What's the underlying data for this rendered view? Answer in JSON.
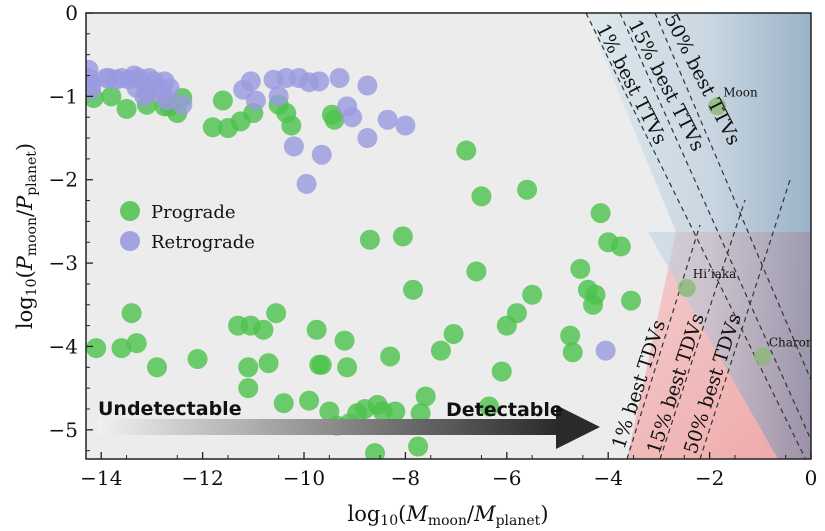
{
  "chart_data": {
    "type": "scatter",
    "xlabel": "log10(Mmoon/Mplanet)",
    "ylabel": "log10(Pmoon/Pplanet)",
    "xlim": [
      -14.3,
      0
    ],
    "ylim": [
      -5.35,
      0
    ],
    "xticks": [
      "−14",
      "−12",
      "−10",
      "−8",
      "−6",
      "−4",
      "−2",
      "0"
    ],
    "xtick_values": [
      -14,
      -12,
      -10,
      -8,
      -6,
      -4,
      -2,
      0
    ],
    "yticks": [
      "0",
      "−1",
      "−2",
      "−3",
      "−4",
      "−5"
    ],
    "ytick_values": [
      0,
      -1,
      -2,
      -3,
      -4,
      -5
    ],
    "grid": false,
    "legend": {
      "position": "middle-left",
      "entries": [
        "Prograde",
        "Retrograde"
      ]
    },
    "colors": {
      "prograde": "#4bc24b",
      "retrograde": "#9a9ae0",
      "background": "#ececec",
      "ttv_zone": "#aed4e6",
      "tdv_zone": "#f0a8a8"
    },
    "zones": {
      "ttv_labels": [
        "1% best TTVs",
        "15% best TTVs",
        "50% best TTVs"
      ],
      "tdv_labels": [
        "1% best TDVs",
        "15% best TDVs",
        "50% best TDVs"
      ]
    },
    "arrow": {
      "left_label": "Undetectable",
      "right_label": "Detectable"
    },
    "named_points": [
      {
        "label": "Moon",
        "x": -1.85,
        "y": -1.12
      },
      {
        "label": "Hi’iaka",
        "x": -2.45,
        "y": -3.3
      },
      {
        "label": "Charon",
        "x": -0.95,
        "y": -4.12
      }
    ],
    "series": [
      {
        "name": "Prograde",
        "points": [
          [
            -14.1,
            -4.02
          ],
          [
            -13.6,
            -4.02
          ],
          [
            -13.4,
            -3.6
          ],
          [
            -13.3,
            -3.96
          ],
          [
            -12.9,
            -4.25
          ],
          [
            -12.5,
            -1.2
          ],
          [
            -12.4,
            -1.02
          ],
          [
            -12.1,
            -4.15
          ],
          [
            -11.8,
            -1.37
          ],
          [
            -11.6,
            -1.05
          ],
          [
            -11.5,
            -1.38
          ],
          [
            -11.3,
            -3.75
          ],
          [
            -11.25,
            -1.3
          ],
          [
            -11.1,
            -4.25
          ],
          [
            -11.1,
            -4.5
          ],
          [
            -11.05,
            -3.75
          ],
          [
            -11.0,
            -1.2
          ],
          [
            -10.8,
            -3.8
          ],
          [
            -10.7,
            -4.2
          ],
          [
            -10.55,
            -3.6
          ],
          [
            -10.5,
            -1.1
          ],
          [
            -10.4,
            -4.68
          ],
          [
            -10.35,
            -1.2
          ],
          [
            -10.25,
            -1.35
          ],
          [
            -9.9,
            -4.65
          ],
          [
            -9.75,
            -3.8
          ],
          [
            -9.7,
            -4.22
          ],
          [
            -9.65,
            -4.22
          ],
          [
            -9.5,
            -4.78
          ],
          [
            -9.45,
            -1.22
          ],
          [
            -9.4,
            -1.28
          ],
          [
            -9.35,
            -4.95
          ],
          [
            -9.2,
            -3.93
          ],
          [
            -9.15,
            -4.25
          ],
          [
            -9.1,
            -4.92
          ],
          [
            -8.95,
            -4.8
          ],
          [
            -8.8,
            -4.75
          ],
          [
            -8.7,
            -2.72
          ],
          [
            -8.6,
            -5.28
          ],
          [
            -8.55,
            -4.7
          ],
          [
            -8.45,
            -4.78
          ],
          [
            -8.3,
            -4.12
          ],
          [
            -8.2,
            -4.78
          ],
          [
            -8.05,
            -2.68
          ],
          [
            -7.85,
            -3.32
          ],
          [
            -7.75,
            -5.2
          ],
          [
            -7.7,
            -4.8
          ],
          [
            -7.6,
            -4.6
          ],
          [
            -7.3,
            -4.05
          ],
          [
            -7.05,
            -3.85
          ],
          [
            -6.8,
            -1.65
          ],
          [
            -6.6,
            -3.1
          ],
          [
            -6.5,
            -2.2
          ],
          [
            -6.35,
            -4.72
          ],
          [
            -6.1,
            -4.3
          ],
          [
            -6.0,
            -3.75
          ],
          [
            -5.8,
            -3.6
          ],
          [
            -5.6,
            -2.12
          ],
          [
            -5.5,
            -3.38
          ],
          [
            -4.75,
            -3.87
          ],
          [
            -4.7,
            -4.07
          ],
          [
            -4.55,
            -3.07
          ],
          [
            -4.4,
            -3.32
          ],
          [
            -4.3,
            -3.5
          ],
          [
            -4.25,
            -3.38
          ],
          [
            -4.15,
            -2.4
          ],
          [
            -4.0,
            -2.75
          ],
          [
            -3.75,
            -2.8
          ],
          [
            -3.55,
            -3.45
          ],
          [
            -14.15,
            -1.02
          ],
          [
            -13.8,
            -1.0
          ],
          [
            -13.5,
            -1.15
          ],
          [
            -13.1,
            -1.1
          ],
          [
            -12.75,
            -1.12
          ],
          [
            -12.65,
            -1.12
          ]
        ]
      },
      {
        "name": "Retrograde",
        "points": [
          [
            -14.25,
            -0.68
          ],
          [
            -14.25,
            -0.78
          ],
          [
            -14.2,
            -0.85
          ],
          [
            -14.2,
            -0.92
          ],
          [
            -13.9,
            -0.78
          ],
          [
            -13.85,
            -0.78
          ],
          [
            -13.7,
            -0.8
          ],
          [
            -13.6,
            -0.78
          ],
          [
            -13.45,
            -0.8
          ],
          [
            -13.35,
            -0.75
          ],
          [
            -13.3,
            -0.9
          ],
          [
            -13.25,
            -0.78
          ],
          [
            -13.1,
            -0.95
          ],
          [
            -13.05,
            -0.78
          ],
          [
            -12.95,
            -0.82
          ],
          [
            -12.9,
            -0.9
          ],
          [
            -12.8,
            -0.97
          ],
          [
            -12.75,
            -0.82
          ],
          [
            -12.7,
            -1.05
          ],
          [
            -12.65,
            -0.9
          ],
          [
            -12.4,
            -1.1
          ],
          [
            -11.2,
            -0.92
          ],
          [
            -11.05,
            -0.82
          ],
          [
            -10.95,
            -1.05
          ],
          [
            -10.6,
            -0.8
          ],
          [
            -10.5,
            -1.0
          ],
          [
            -10.35,
            -0.78
          ],
          [
            -10.2,
            -1.6
          ],
          [
            -10.1,
            -0.78
          ],
          [
            -9.95,
            -2.05
          ],
          [
            -9.9,
            -0.83
          ],
          [
            -9.7,
            -0.82
          ],
          [
            -9.65,
            -1.7
          ],
          [
            -9.3,
            -0.78
          ],
          [
            -9.15,
            -1.12
          ],
          [
            -9.05,
            -1.25
          ],
          [
            -8.75,
            -0.87
          ],
          [
            -8.75,
            -1.5
          ],
          [
            -8.35,
            -1.28
          ],
          [
            -8.0,
            -1.35
          ],
          [
            -4.05,
            -4.05
          ],
          [
            -13.15,
            -1.0
          ]
        ]
      }
    ]
  }
}
